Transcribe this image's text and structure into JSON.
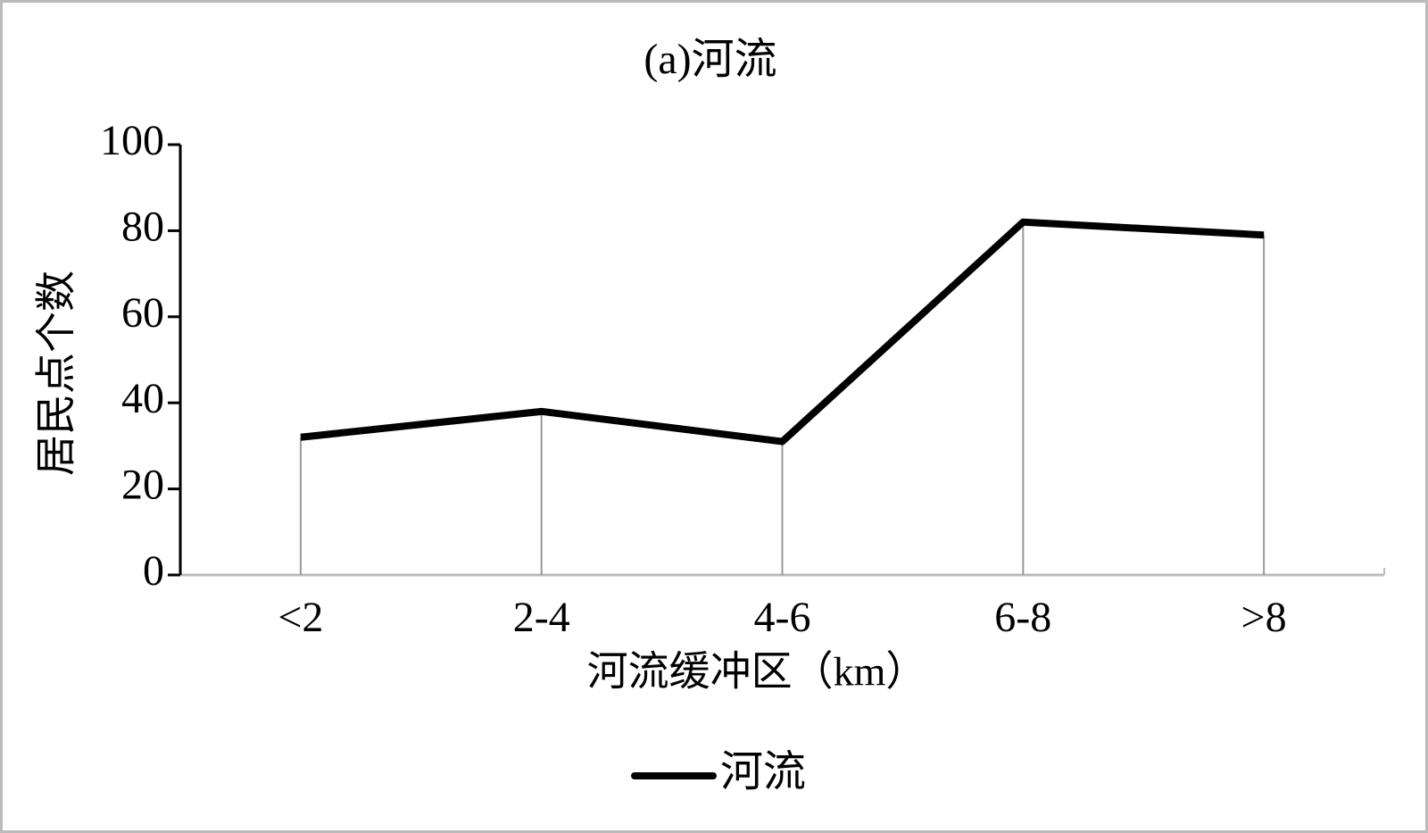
{
  "chart_data": {
    "type": "line",
    "title": "(a)河流",
    "x_label": "河流缓冲区（km）",
    "y_label": "居民点个数",
    "categories": [
      "<2",
      "2-4",
      "4-6",
      "6-8",
      ">8"
    ],
    "series": [
      {
        "name": "河流",
        "color": "#000000",
        "values": [
          32,
          38,
          31,
          82,
          79
        ]
      }
    ],
    "ylim": [
      0,
      100
    ],
    "yticks": [
      0,
      20,
      40,
      60,
      80,
      100
    ],
    "drop_lines": true,
    "legend": "bottom"
  }
}
